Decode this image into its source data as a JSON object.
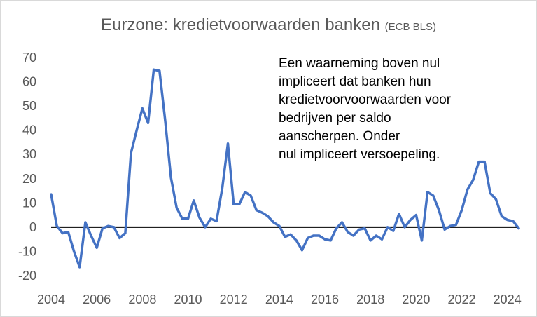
{
  "chart_data": {
    "type": "line",
    "title": "Eurzone: kredietvoorwaarden banken",
    "subtitle": "(ECB BLS)",
    "annotation": "Een waarneming boven nul\nimpliceert dat banken hun\nkredietvoorvoorwaarden voor\nbedrijven per saldo\naanscherpen. Onder\nnul impliceert versoepeling.",
    "xlim": [
      2004,
      2024.5
    ],
    "ylim": [
      -20,
      70
    ],
    "x_ticks": [
      "2004",
      "2006",
      "2008",
      "2010",
      "2012",
      "2014",
      "2016",
      "2018",
      "2020",
      "2022",
      "2024"
    ],
    "y_ticks": [
      "70",
      "60",
      "50",
      "40",
      "30",
      "20",
      "10",
      "0",
      "-10",
      "-20"
    ],
    "zero_line": true,
    "grid": false,
    "colors": {
      "series": "#4472c4",
      "zero_line": "#000000",
      "text": "#595959"
    },
    "series": [
      {
        "x": [
          2004.0,
          2004.25,
          2004.5,
          2004.75,
          2005.0,
          2005.25,
          2005.5,
          2005.75,
          2006.0,
          2006.25,
          2006.5,
          2006.75,
          2007.0,
          2007.25,
          2007.5,
          2007.75,
          2008.0,
          2008.25,
          2008.5,
          2008.75,
          2009.0,
          2009.25,
          2009.5,
          2009.75,
          2010.0,
          2010.25,
          2010.5,
          2010.75,
          2011.0,
          2011.25,
          2011.5,
          2011.75,
          2012.0,
          2012.25,
          2012.5,
          2012.75,
          2013.0,
          2013.25,
          2013.5,
          2013.75,
          2014.0,
          2014.25,
          2014.5,
          2014.75,
          2015.0,
          2015.25,
          2015.5,
          2015.75,
          2016.0,
          2016.25,
          2016.5,
          2016.75,
          2017.0,
          2017.25,
          2017.5,
          2017.75,
          2018.0,
          2018.25,
          2018.5,
          2018.75,
          2019.0,
          2019.25,
          2019.5,
          2019.75,
          2020.0,
          2020.25,
          2020.5,
          2020.75,
          2021.0,
          2021.25,
          2021.5,
          2021.75,
          2022.0,
          2022.25,
          2022.5,
          2022.75,
          2023.0,
          2023.25,
          2023.5,
          2023.75,
          2024.0,
          2024.25,
          2024.5
        ],
        "y": [
          13.5,
          0.5,
          -2.5,
          -2,
          -10,
          -16.5,
          2,
          -3.5,
          -8.5,
          -0.5,
          0.5,
          0,
          -4.5,
          -2.5,
          30.5,
          40,
          49,
          43,
          65,
          64.5,
          44,
          20.5,
          8,
          3.5,
          3.5,
          11,
          4,
          0,
          3.5,
          2.5,
          16,
          34.5,
          9.5,
          9.5,
          14.5,
          13,
          7,
          6,
          4.5,
          2,
          0.5,
          -4,
          -3,
          -5.5,
          -9.5,
          -4.5,
          -3.5,
          -3.5,
          -5,
          -5.5,
          -0.5,
          2,
          -2,
          -3.5,
          -1,
          -0.5,
          -5.5,
          -3.5,
          -5,
          0,
          -1.5,
          5.5,
          0,
          3,
          5,
          -5.5,
          14.5,
          13,
          7,
          -1,
          0.5,
          1,
          7,
          15.5,
          19.5,
          27,
          27,
          14,
          11.5,
          4.5,
          3,
          2.5,
          -0.5
        ]
      }
    ]
  }
}
